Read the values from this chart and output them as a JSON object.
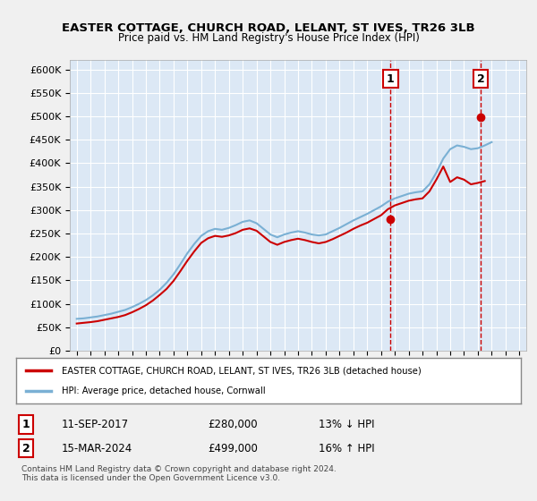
{
  "title": "EASTER COTTAGE, CHURCH ROAD, LELANT, ST IVES, TR26 3LB",
  "subtitle": "Price paid vs. HM Land Registry's House Price Index (HPI)",
  "ylim": [
    0,
    620000
  ],
  "yticks": [
    0,
    50000,
    100000,
    150000,
    200000,
    250000,
    300000,
    350000,
    400000,
    450000,
    500000,
    550000,
    600000
  ],
  "ytick_labels": [
    "£0",
    "£50K",
    "£100K",
    "£150K",
    "£200K",
    "£250K",
    "£300K",
    "£350K",
    "£400K",
    "£450K",
    "£500K",
    "£550K",
    "£600K"
  ],
  "xlim_start": 1994.5,
  "xlim_end": 2027.5,
  "bg_color": "#e8f0f8",
  "plot_bg_color": "#dce8f5",
  "grid_color": "#ffffff",
  "hpi_color": "#7ab0d4",
  "price_color": "#cc0000",
  "marker_color": "#cc0000",
  "dashed_color": "#cc0000",
  "annotation_box_color": "#cc0000",
  "legend_box_color": "#cc0000",
  "sale1_x": 2017.69,
  "sale1_y": 280000,
  "sale1_label": "1",
  "sale2_x": 2024.21,
  "sale2_y": 499000,
  "sale2_label": "2",
  "sale1_date": "11-SEP-2017",
  "sale1_price": "£280,000",
  "sale1_hpi": "13% ↓ HPI",
  "sale2_date": "15-MAR-2024",
  "sale2_price": "£499,000",
  "sale2_hpi": "16% ↑ HPI",
  "legend_line1": "EASTER COTTAGE, CHURCH ROAD, LELANT, ST IVES, TR26 3LB (detached house)",
  "legend_line2": "HPI: Average price, detached house, Cornwall",
  "footer": "Contains HM Land Registry data © Crown copyright and database right 2024.\nThis data is licensed under the Open Government Licence v3.0.",
  "hpi_data_x": [
    1995,
    1995.5,
    1996,
    1996.5,
    1997,
    1997.5,
    1998,
    1998.5,
    1999,
    1999.5,
    2000,
    2000.5,
    2001,
    2001.5,
    2002,
    2002.5,
    2003,
    2003.5,
    2004,
    2004.5,
    2005,
    2005.5,
    2006,
    2006.5,
    2007,
    2007.5,
    2008,
    2008.5,
    2009,
    2009.5,
    2010,
    2010.5,
    2011,
    2011.5,
    2012,
    2012.5,
    2013,
    2013.5,
    2014,
    2014.5,
    2015,
    2015.5,
    2016,
    2016.5,
    2017,
    2017.5,
    2018,
    2018.5,
    2019,
    2019.5,
    2020,
    2020.5,
    2021,
    2021.5,
    2022,
    2022.5,
    2023,
    2023.5,
    2024,
    2024.5,
    2025
  ],
  "hpi_data_y": [
    68000,
    69000,
    71000,
    73000,
    76000,
    79000,
    83000,
    87000,
    93000,
    100000,
    108000,
    118000,
    130000,
    145000,
    163000,
    185000,
    208000,
    228000,
    245000,
    255000,
    260000,
    258000,
    262000,
    268000,
    275000,
    278000,
    272000,
    260000,
    248000,
    242000,
    248000,
    252000,
    255000,
    252000,
    248000,
    246000,
    248000,
    255000,
    262000,
    270000,
    278000,
    285000,
    292000,
    300000,
    308000,
    318000,
    325000,
    330000,
    335000,
    338000,
    340000,
    355000,
    380000,
    410000,
    430000,
    438000,
    435000,
    430000,
    432000,
    438000,
    445000
  ],
  "price_data_x": [
    1995,
    1995.5,
    1996,
    1996.5,
    1997,
    1997.5,
    1998,
    1998.5,
    1999,
    1999.5,
    2000,
    2000.5,
    2001,
    2001.5,
    2002,
    2002.5,
    2003,
    2003.5,
    2004,
    2004.5,
    2005,
    2005.5,
    2006,
    2006.5,
    2007,
    2007.5,
    2008,
    2008.5,
    2009,
    2009.5,
    2010,
    2010.5,
    2011,
    2011.5,
    2012,
    2012.5,
    2013,
    2013.5,
    2014,
    2014.5,
    2015,
    2015.5,
    2016,
    2016.5,
    2017,
    2017.5,
    2018,
    2018.5,
    2019,
    2019.5,
    2020,
    2020.5,
    2021,
    2021.5,
    2022,
    2022.5,
    2023,
    2023.5,
    2024,
    2024.5
  ],
  "price_data_y": [
    58000,
    59500,
    61000,
    63000,
    66000,
    69000,
    72000,
    76000,
    82000,
    89000,
    97000,
    107000,
    119000,
    132000,
    149000,
    170000,
    192000,
    212000,
    230000,
    240000,
    245000,
    243000,
    246000,
    251000,
    258000,
    261000,
    256000,
    244000,
    232000,
    226000,
    232000,
    236000,
    239000,
    236000,
    232000,
    229000,
    232000,
    238000,
    245000,
    252000,
    260000,
    267000,
    273000,
    281000,
    289000,
    302000,
    310000,
    315000,
    320000,
    323000,
    325000,
    340000,
    365000,
    393000,
    360000,
    370000,
    365000,
    355000,
    358000,
    362000
  ]
}
